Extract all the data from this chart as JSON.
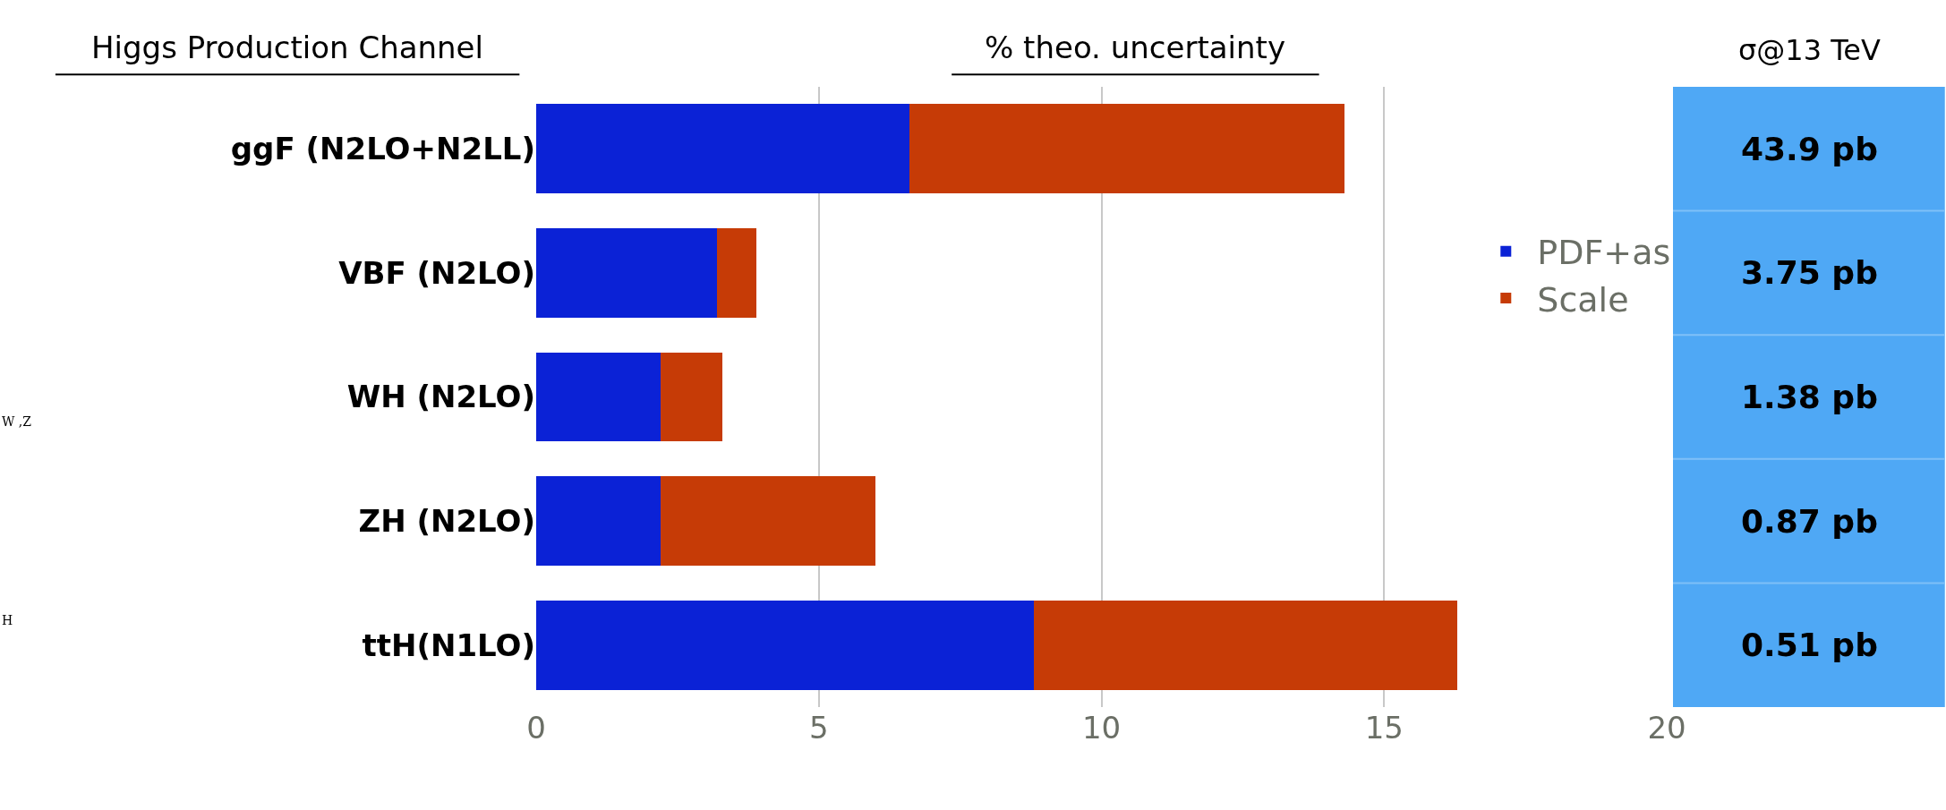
{
  "chart_data": [
    {
      "type": "bar",
      "orientation": "horizontal",
      "stacked": true,
      "title": "% theo. uncertainty",
      "ylabel": "Higgs Production Channel",
      "categories": [
        "ggF (N2LO+N2LL)",
        "VBF (N2LO)",
        "WH (N2LO)",
        "ZH (N2LO)",
        "ttH(N1LO)"
      ],
      "series": [
        {
          "name": "PDF+as",
          "color": "#0b22d6",
          "values": [
            6.6,
            3.2,
            2.2,
            2.2,
            8.8
          ]
        },
        {
          "name": "Scale",
          "color": "#c63b06",
          "values": [
            7.7,
            0.7,
            1.1,
            3.8,
            7.5
          ]
        }
      ],
      "xlim": [
        0,
        20
      ],
      "xticks": [
        0,
        5,
        10,
        15,
        20
      ],
      "grid": "x",
      "legend": "right",
      "annotations": [
        "W ,Z",
        "H"
      ]
    },
    {
      "type": "other",
      "title": "σ@13 TeV",
      "annotations": [
        "43.9 pb",
        "3.75 pb",
        "1.38 pb",
        "0.87 pb",
        "0.51 pb"
      ]
    }
  ]
}
